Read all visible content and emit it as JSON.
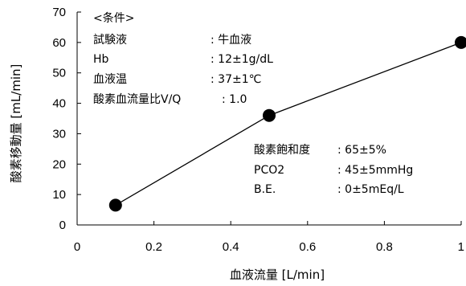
{
  "chart_data": {
    "type": "line",
    "xlabel": "血液流量 [L/min]",
    "ylabel": "酸素移動量 [mL/min]",
    "xlim": [
      0,
      1
    ],
    "ylim": [
      0,
      70
    ],
    "x_ticks": [
      "0",
      "0.2",
      "0.4",
      "0.6",
      "0.8",
      "1"
    ],
    "y_ticks": [
      "0",
      "10",
      "20",
      "30",
      "40",
      "50",
      "60",
      "70"
    ],
    "grid": false,
    "legend": "none",
    "series": [
      {
        "x": [
          0.1,
          0.5,
          1.0
        ],
        "y": [
          6.5,
          36,
          60
        ]
      }
    ],
    "conditions": {
      "heading": "<条件>",
      "rows": [
        {
          "label": "試験液",
          "value": ": 牛血液"
        },
        {
          "label": "Hb",
          "value": ": 12±1g/dL"
        },
        {
          "label": "血液温",
          "value": ": 37±1℃"
        },
        {
          "label": "酸素血流量比V/Q",
          "value": ": 1.0"
        }
      ]
    },
    "annotations": [
      {
        "label": "酸素飽和度",
        "value": ": 65±5%"
      },
      {
        "label": "PCO2",
        "value": ": 45±5mmHg"
      },
      {
        "label": "B.E.",
        "value": ": 0±5mEq/L"
      }
    ]
  }
}
